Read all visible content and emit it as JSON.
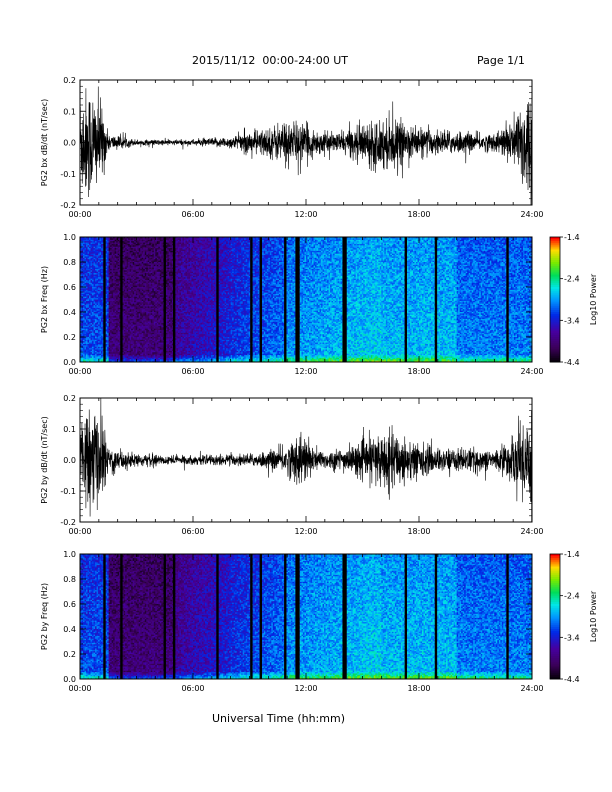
{
  "header": {
    "date_range": "2015/11/12  00:00-24:00 UT",
    "page": "Page 1/1"
  },
  "xlabel": "Universal Time (hh:mm)",
  "colorbar": {
    "label": "Log10 Power",
    "ticks": [
      "-1.4",
      "-2.4",
      "-3.4",
      "-4.4"
    ],
    "range": [
      -4.4,
      -1.4
    ]
  },
  "chart_data": [
    {
      "type": "line",
      "ylabel": "PG2 bx dB/dt (nT/sec)",
      "xlim": [
        0,
        24
      ],
      "ylim": [
        -0.2,
        0.2
      ],
      "x_ticks": [
        "00:00",
        "06:00",
        "12:00",
        "18:00",
        "24:00"
      ],
      "y_ticks": [
        "0.2",
        "0.1",
        "0.0",
        "-0.1",
        "-0.2"
      ],
      "amplitude_envelope": [
        [
          0,
          0.18
        ],
        [
          0.6,
          0.2
        ],
        [
          1.2,
          0.12
        ],
        [
          1.5,
          0.03
        ],
        [
          3,
          0.01
        ],
        [
          6,
          0.01
        ],
        [
          8,
          0.02
        ],
        [
          9,
          0.04
        ],
        [
          10,
          0.05
        ],
        [
          11,
          0.08
        ],
        [
          12,
          0.06
        ],
        [
          12.7,
          0.04
        ],
        [
          13.5,
          0.03
        ],
        [
          14.5,
          0.05
        ],
        [
          15.5,
          0.08
        ],
        [
          16.5,
          0.09
        ],
        [
          17,
          0.07
        ],
        [
          18,
          0.05
        ],
        [
          19,
          0.04
        ],
        [
          20,
          0.04
        ],
        [
          21,
          0.03
        ],
        [
          22,
          0.03
        ],
        [
          23,
          0.08
        ],
        [
          23.8,
          0.2
        ],
        [
          24,
          0.2
        ]
      ]
    },
    {
      "type": "heatmap",
      "ylabel": "PG2 bx Freq (Hz)",
      "xlim": [
        0,
        24
      ],
      "ylim": [
        0.0,
        1.0
      ],
      "x_ticks": [
        "00:00",
        "06:00",
        "12:00",
        "18:00",
        "24:00"
      ],
      "y_ticks": [
        "1.0",
        "0.8",
        "0.6",
        "0.4",
        "0.2",
        "0.0"
      ],
      "colorbar_range": [
        -4.4,
        -1.4
      ],
      "data_gaps_hours": [
        1.3,
        2.2,
        4.5,
        5.0,
        7.3,
        9.1,
        9.6,
        10.9,
        11.5,
        11.6,
        14.0,
        14.1,
        17.3,
        18.9,
        22.7
      ]
    },
    {
      "type": "line",
      "ylabel": "PG2 by dB/dt (nT/sec)",
      "xlim": [
        0,
        24
      ],
      "ylim": [
        -0.2,
        0.2
      ],
      "x_ticks": [
        "00:00",
        "06:00",
        "12:00",
        "18:00",
        "24:00"
      ],
      "y_ticks": [
        "0.2",
        "0.1",
        "0.0",
        "-0.1",
        "-0.2"
      ],
      "amplitude_envelope": [
        [
          0,
          0.1
        ],
        [
          0.6,
          0.2
        ],
        [
          1.2,
          0.12
        ],
        [
          1.6,
          0.05
        ],
        [
          3,
          0.02
        ],
        [
          6,
          0.015
        ],
        [
          8,
          0.02
        ],
        [
          9,
          0.02
        ],
        [
          10,
          0.03
        ],
        [
          11,
          0.05
        ],
        [
          11.8,
          0.1
        ],
        [
          12.3,
          0.05
        ],
        [
          13,
          0.03
        ],
        [
          14,
          0.04
        ],
        [
          15,
          0.06
        ],
        [
          16,
          0.1
        ],
        [
          17,
          0.09
        ],
        [
          18,
          0.06
        ],
        [
          19,
          0.04
        ],
        [
          20,
          0.04
        ],
        [
          21,
          0.04
        ],
        [
          22,
          0.03
        ],
        [
          23,
          0.08
        ],
        [
          24,
          0.2
        ]
      ]
    },
    {
      "type": "heatmap",
      "ylabel": "PG2 by Freq (Hz)",
      "xlim": [
        0,
        24
      ],
      "ylim": [
        0.0,
        1.0
      ],
      "x_ticks": [
        "00:00",
        "06:00",
        "12:00",
        "18:00",
        "24:00"
      ],
      "y_ticks": [
        "1.0",
        "0.8",
        "0.6",
        "0.4",
        "0.2",
        "0.0"
      ],
      "colorbar_range": [
        -4.4,
        -1.4
      ],
      "data_gaps_hours": [
        1.3,
        2.2,
        4.5,
        5.0,
        7.3,
        9.1,
        9.6,
        10.9,
        11.5,
        11.6,
        14.0,
        14.1,
        17.3,
        18.9,
        22.7
      ]
    }
  ]
}
